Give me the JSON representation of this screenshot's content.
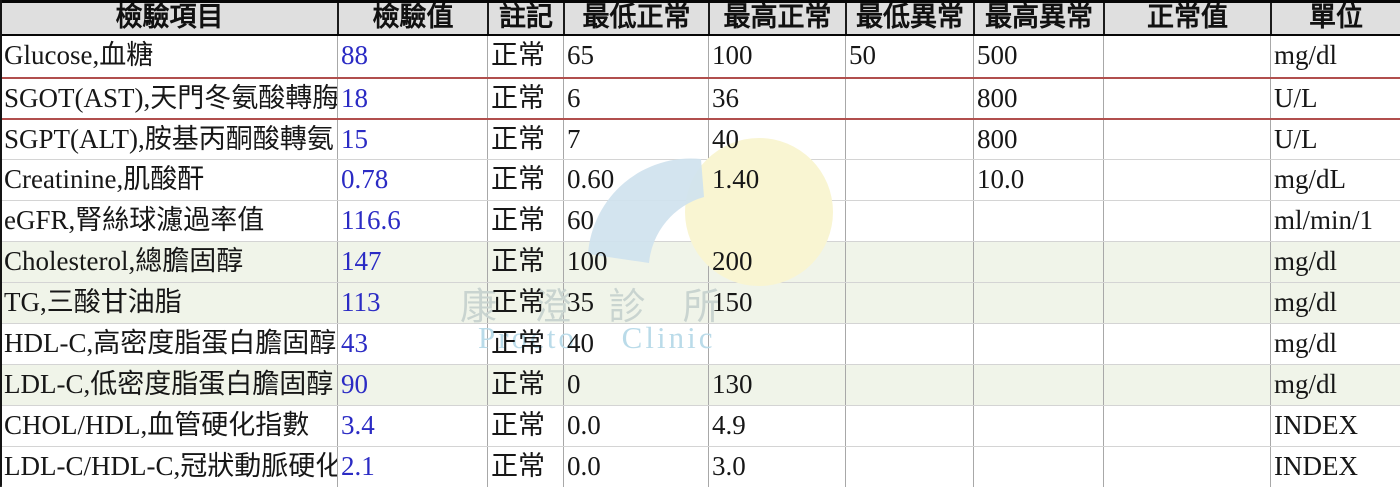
{
  "table": {
    "columns": [
      {
        "key": "item",
        "label": "檢驗項目"
      },
      {
        "key": "value",
        "label": "檢驗值"
      },
      {
        "key": "note",
        "label": "註記"
      },
      {
        "key": "min_normal",
        "label": "最低正常"
      },
      {
        "key": "max_normal",
        "label": "最高正常"
      },
      {
        "key": "min_abnormal",
        "label": "最低異常"
      },
      {
        "key": "max_abnormal",
        "label": "最高異常"
      },
      {
        "key": "normal_value",
        "label": "正常值"
      },
      {
        "key": "unit",
        "label": "單位"
      }
    ],
    "rows": [
      {
        "item": "Glucose,血糖",
        "value": "88",
        "note": "正常",
        "min_normal": "65",
        "max_normal": "100",
        "min_abnormal": "50",
        "max_abnormal": "500",
        "normal_value": "",
        "unit": "mg/dl",
        "bg": "white",
        "separator": "default"
      },
      {
        "item": "SGOT(AST),天門冬氨酸轉脢",
        "value": "18",
        "note": "正常",
        "min_normal": "6",
        "max_normal": "36",
        "min_abnormal": "",
        "max_abnormal": "800",
        "normal_value": "",
        "unit": "U/L",
        "bg": "white",
        "separator": "red"
      },
      {
        "item": "SGPT(ALT),胺基丙酮酸轉氨",
        "value": "15",
        "note": "正常",
        "min_normal": "7",
        "max_normal": "40",
        "min_abnormal": "",
        "max_abnormal": "800",
        "normal_value": "",
        "unit": "U/L",
        "bg": "white",
        "separator": "red"
      },
      {
        "item": "Creatinine,肌酸酐",
        "value": "0.78",
        "note": "正常",
        "min_normal": "0.60",
        "max_normal": "1.40",
        "min_abnormal": "",
        "max_abnormal": "10.0",
        "normal_value": "",
        "unit": "mg/dL",
        "bg": "white",
        "separator": "default"
      },
      {
        "item": "eGFR,腎絲球濾過率值",
        "value": "116.6",
        "note": "正常",
        "min_normal": "60",
        "max_normal": "",
        "min_abnormal": "",
        "max_abnormal": "",
        "normal_value": "",
        "unit": "ml/min/1",
        "bg": "white",
        "separator": "default"
      },
      {
        "item": "Cholesterol,總膽固醇",
        "value": "147",
        "note": "正常",
        "min_normal": "100",
        "max_normal": "200",
        "min_abnormal": "",
        "max_abnormal": "",
        "normal_value": "",
        "unit": "mg/dl",
        "bg": "green",
        "separator": "default"
      },
      {
        "item": "TG,三酸甘油脂",
        "value": "113",
        "note": "正常",
        "min_normal": "35",
        "max_normal": "150",
        "min_abnormal": "",
        "max_abnormal": "",
        "normal_value": "",
        "unit": "mg/dl",
        "bg": "green",
        "separator": "default"
      },
      {
        "item": "HDL-C,高密度脂蛋白膽固醇",
        "value": "43",
        "note": "正常",
        "min_normal": "40",
        "max_normal": "",
        "min_abnormal": "",
        "max_abnormal": "",
        "normal_value": "",
        "unit": "mg/dl",
        "bg": "white",
        "separator": "default"
      },
      {
        "item": "LDL-C,低密度脂蛋白膽固醇",
        "value": "90",
        "note": "正常",
        "min_normal": "0",
        "max_normal": "130",
        "min_abnormal": "",
        "max_abnormal": "",
        "normal_value": "",
        "unit": "mg/dl",
        "bg": "green",
        "separator": "default"
      },
      {
        "item": "CHOL/HDL,血管硬化指數",
        "value": "3.4",
        "note": "正常",
        "min_normal": "0.0",
        "max_normal": "4.9",
        "min_abnormal": "",
        "max_abnormal": "",
        "normal_value": "",
        "unit": "INDEX",
        "bg": "white",
        "separator": "default"
      },
      {
        "item": "LDL-C/HDL-C,冠狀動脈硬化",
        "value": "2.1",
        "note": "正常",
        "min_normal": "0.0",
        "max_normal": "3.0",
        "min_abnormal": "",
        "max_abnormal": "",
        "normal_value": "",
        "unit": "INDEX",
        "bg": "white",
        "separator": "default"
      }
    ]
  },
  "watermark": {
    "clinic_cjk": "康 澄 診 所",
    "clinic_en": "Procto Clinic"
  },
  "colors": {
    "header_bg": "#dfdfdf",
    "green_row": "#f0f4e9",
    "red_line": "#b14f4d",
    "value_blue": "#2b2bc4",
    "watermark_yellow": "#f9f5d2",
    "watermark_blue": "#cfe2ee",
    "watermark_text_cjk": "#c9d4d0",
    "watermark_text_en": "#badbe9"
  }
}
